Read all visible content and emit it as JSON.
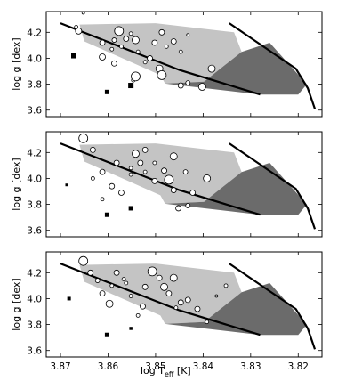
{
  "chart_data": [
    {
      "type": "scatter",
      "panel": "top",
      "ylabel": "log g [dex]",
      "xlim": [
        3.873,
        3.815
      ],
      "ylim": [
        4.36,
        3.55
      ],
      "xticks": [
        3.87,
        3.86,
        3.85,
        3.84,
        3.83,
        3.82
      ],
      "yticks": [
        3.6,
        3.8,
        4.0,
        4.2
      ],
      "ytick_labels": [
        "3.6",
        "3.8",
        "4.0",
        "4.2"
      ],
      "grid": false,
      "dark_region": [
        [
          3.848,
          3.805
        ],
        [
          3.828,
          3.72
        ],
        [
          3.82,
          3.72
        ],
        [
          3.8182,
          3.8
        ],
        [
          3.826,
          4.12
        ],
        [
          3.8319,
          4.05
        ],
        [
          3.8398,
          3.82
        ]
      ],
      "light_region": [
        [
          3.866,
          4.26
        ],
        [
          3.865,
          4.13
        ],
        [
          3.857,
          4.0
        ],
        [
          3.849,
          3.87
        ],
        [
          3.848,
          3.805
        ],
        [
          3.8398,
          3.82
        ],
        [
          3.8319,
          4.05
        ],
        [
          3.8335,
          4.2
        ],
        [
          3.85,
          4.27
        ]
      ],
      "lines": [
        [
          [
            3.87,
            4.27
          ],
          [
            3.845,
            3.91
          ],
          [
            3.828,
            3.72
          ]
        ],
        [
          [
            3.8345,
            4.27
          ],
          [
            3.8205,
            3.92
          ],
          [
            3.818,
            3.77
          ],
          [
            3.8165,
            3.61
          ]
        ]
      ],
      "filled_points": [
        {
          "x": 3.8672,
          "y": 4.02,
          "size": 6
        },
        {
          "x": 3.8602,
          "y": 3.74,
          "size": 5
        },
        {
          "x": 3.8552,
          "y": 3.79,
          "size": 6
        }
      ],
      "open_points": [
        {
          "x": 3.8662,
          "y": 4.21,
          "size": 3.5
        },
        {
          "x": 3.8612,
          "y": 4.12,
          "size": 3
        },
        {
          "x": 3.8592,
          "y": 4.07,
          "size": 2
        },
        {
          "x": 3.8612,
          "y": 4.01,
          "size": 3.5
        },
        {
          "x": 3.8587,
          "y": 3.96,
          "size": 3
        },
        {
          "x": 3.8577,
          "y": 4.21,
          "size": 5
        },
        {
          "x": 3.8562,
          "y": 4.15,
          "size": 3
        },
        {
          "x": 3.8572,
          "y": 4.09,
          "size": 2
        },
        {
          "x": 3.8552,
          "y": 4.19,
          "size": 2
        },
        {
          "x": 3.8542,
          "y": 4.14,
          "size": 4
        },
        {
          "x": 3.8537,
          "y": 4.05,
          "size": 2
        },
        {
          "x": 3.8547,
          "y": 3.83,
          "size": 2
        },
        {
          "x": 3.8492,
          "y": 3.92,
          "size": 4
        },
        {
          "x": 3.8512,
          "y": 4.0,
          "size": 3
        },
        {
          "x": 3.8502,
          "y": 4.12,
          "size": 3
        },
        {
          "x": 3.8487,
          "y": 4.2,
          "size": 3
        },
        {
          "x": 3.8477,
          "y": 4.09,
          "size": 2
        },
        {
          "x": 3.8462,
          "y": 4.13,
          "size": 3
        },
        {
          "x": 3.8447,
          "y": 4.05,
          "size": 2
        },
        {
          "x": 3.8432,
          "y": 4.18,
          "size": 1.5
        },
        {
          "x": 3.8447,
          "y": 3.79,
          "size": 3
        },
        {
          "x": 3.8432,
          "y": 3.81,
          "size": 2.5
        },
        {
          "x": 3.8402,
          "y": 3.78,
          "size": 4
        },
        {
          "x": 3.8522,
          "y": 3.97,
          "size": 2
        },
        {
          "x": 3.8667,
          "y": 4.24,
          "size": 2
        },
        {
          "x": 3.8652,
          "y": 4.35,
          "size": 1.5
        },
        {
          "x": 3.8487,
          "y": 3.87,
          "size": 5
        },
        {
          "x": 3.8382,
          "y": 3.92,
          "size": 4
        },
        {
          "x": 3.8542,
          "y": 3.86,
          "size": 5
        },
        {
          "x": 3.8587,
          "y": 4.14,
          "size": 2.5
        }
      ]
    },
    {
      "type": "scatter",
      "panel": "middle",
      "ylabel": "log g [dex]",
      "xlim": [
        3.873,
        3.815
      ],
      "ylim": [
        4.36,
        3.55
      ],
      "xticks": [
        3.87,
        3.86,
        3.85,
        3.84,
        3.83,
        3.82
      ],
      "yticks": [
        3.6,
        3.8,
        4.0,
        4.2
      ],
      "ytick_labels": [
        "3.6",
        "3.8",
        "4.0",
        "4.2"
      ],
      "grid": false,
      "dark_region": [
        [
          3.848,
          3.805
        ],
        [
          3.828,
          3.72
        ],
        [
          3.82,
          3.72
        ],
        [
          3.8182,
          3.8
        ],
        [
          3.826,
          4.12
        ],
        [
          3.8319,
          4.05
        ],
        [
          3.8398,
          3.82
        ]
      ],
      "light_region": [
        [
          3.866,
          4.26
        ],
        [
          3.865,
          4.13
        ],
        [
          3.857,
          4.0
        ],
        [
          3.849,
          3.87
        ],
        [
          3.848,
          3.805
        ],
        [
          3.8398,
          3.82
        ],
        [
          3.8319,
          4.05
        ],
        [
          3.8335,
          4.2
        ],
        [
          3.85,
          4.27
        ]
      ],
      "lines": [
        [
          [
            3.87,
            4.27
          ],
          [
            3.845,
            3.91
          ],
          [
            3.828,
            3.72
          ]
        ],
        [
          [
            3.8345,
            4.27
          ],
          [
            3.8205,
            3.92
          ],
          [
            3.818,
            3.77
          ],
          [
            3.8165,
            3.61
          ]
        ]
      ],
      "filled_points": [
        {
          "x": 3.8602,
          "y": 3.72,
          "size": 5
        },
        {
          "x": 3.8552,
          "y": 3.77,
          "size": 5
        },
        {
          "x": 3.8687,
          "y": 3.95,
          "size": 3
        }
      ],
      "open_points": [
        {
          "x": 3.8652,
          "y": 4.31,
          "size": 5
        },
        {
          "x": 3.8632,
          "y": 4.22,
          "size": 3
        },
        {
          "x": 3.8612,
          "y": 4.05,
          "size": 3
        },
        {
          "x": 3.8582,
          "y": 4.12,
          "size": 3
        },
        {
          "x": 3.8552,
          "y": 4.03,
          "size": 2
        },
        {
          "x": 3.8542,
          "y": 4.19,
          "size": 4
        },
        {
          "x": 3.8532,
          "y": 4.12,
          "size": 3
        },
        {
          "x": 3.8522,
          "y": 4.05,
          "size": 2
        },
        {
          "x": 3.8502,
          "y": 3.98,
          "size": 3
        },
        {
          "x": 3.8482,
          "y": 4.06,
          "size": 3
        },
        {
          "x": 3.8472,
          "y": 3.99,
          "size": 5
        },
        {
          "x": 3.8462,
          "y": 4.17,
          "size": 4
        },
        {
          "x": 3.8452,
          "y": 3.77,
          "size": 3
        },
        {
          "x": 3.8432,
          "y": 3.79,
          "size": 2.5
        },
        {
          "x": 3.8422,
          "y": 3.89,
          "size": 3
        },
        {
          "x": 3.8392,
          "y": 4.0,
          "size": 4
        },
        {
          "x": 3.8572,
          "y": 3.89,
          "size": 3
        },
        {
          "x": 3.8612,
          "y": 3.84,
          "size": 2
        },
        {
          "x": 3.8592,
          "y": 3.94,
          "size": 3
        },
        {
          "x": 3.8502,
          "y": 4.12,
          "size": 2
        },
        {
          "x": 3.8552,
          "y": 4.08,
          "size": 2
        },
        {
          "x": 3.8632,
          "y": 4.0,
          "size": 2
        },
        {
          "x": 3.8437,
          "y": 4.05,
          "size": 2.5
        },
        {
          "x": 3.8522,
          "y": 4.22,
          "size": 3
        },
        {
          "x": 3.8462,
          "y": 3.91,
          "size": 3
        }
      ]
    },
    {
      "type": "scatter",
      "panel": "bottom",
      "ylabel": "log g [dex]",
      "xlabel": "log Teff [K]",
      "xlim": [
        3.873,
        3.815
      ],
      "ylim": [
        4.36,
        3.55
      ],
      "xticks": [
        3.87,
        3.86,
        3.85,
        3.84,
        3.83,
        3.82
      ],
      "xtick_labels": [
        "3.87",
        "3.86",
        "3.85",
        "3.84",
        "3.83",
        "3.82"
      ],
      "yticks": [
        3.6,
        3.8,
        4.0,
        4.2
      ],
      "ytick_labels": [
        "3.6",
        "3.8",
        "4.0",
        "4.2"
      ],
      "grid": false,
      "dark_region": [
        [
          3.848,
          3.805
        ],
        [
          3.828,
          3.72
        ],
        [
          3.82,
          3.72
        ],
        [
          3.8182,
          3.8
        ],
        [
          3.826,
          4.12
        ],
        [
          3.8319,
          4.05
        ],
        [
          3.8398,
          3.82
        ]
      ],
      "light_region": [
        [
          3.866,
          4.26
        ],
        [
          3.865,
          4.13
        ],
        [
          3.857,
          4.0
        ],
        [
          3.849,
          3.87
        ],
        [
          3.848,
          3.805
        ],
        [
          3.8398,
          3.82
        ],
        [
          3.8319,
          4.05
        ],
        [
          3.8335,
          4.2
        ],
        [
          3.85,
          4.27
        ]
      ],
      "lines": [
        [
          [
            3.87,
            4.27
          ],
          [
            3.845,
            3.91
          ],
          [
            3.828,
            3.72
          ]
        ],
        [
          [
            3.8345,
            4.27
          ],
          [
            3.8205,
            3.92
          ],
          [
            3.818,
            3.77
          ],
          [
            3.8165,
            3.61
          ]
        ]
      ],
      "filled_points": [
        {
          "x": 3.8602,
          "y": 3.72,
          "size": 5
        },
        {
          "x": 3.8552,
          "y": 3.77,
          "size": 3.5
        },
        {
          "x": 3.8682,
          "y": 4.0,
          "size": 4
        }
      ],
      "open_points": [
        {
          "x": 3.8652,
          "y": 4.29,
          "size": 5
        },
        {
          "x": 3.8637,
          "y": 4.2,
          "size": 3
        },
        {
          "x": 3.8622,
          "y": 4.14,
          "size": 2.5
        },
        {
          "x": 3.8612,
          "y": 4.04,
          "size": 3
        },
        {
          "x": 3.8597,
          "y": 3.96,
          "size": 4
        },
        {
          "x": 3.8592,
          "y": 4.1,
          "size": 2
        },
        {
          "x": 3.8582,
          "y": 4.2,
          "size": 3
        },
        {
          "x": 3.8562,
          "y": 4.12,
          "size": 2
        },
        {
          "x": 3.8552,
          "y": 4.02,
          "size": 2
        },
        {
          "x": 3.8537,
          "y": 3.87,
          "size": 2
        },
        {
          "x": 3.8522,
          "y": 4.09,
          "size": 3
        },
        {
          "x": 3.8507,
          "y": 4.21,
          "size": 5
        },
        {
          "x": 3.8492,
          "y": 4.16,
          "size": 3
        },
        {
          "x": 3.8482,
          "y": 4.09,
          "size": 4
        },
        {
          "x": 3.8472,
          "y": 4.04,
          "size": 3
        },
        {
          "x": 3.8462,
          "y": 4.16,
          "size": 4
        },
        {
          "x": 3.8447,
          "y": 3.97,
          "size": 3
        },
        {
          "x": 3.8432,
          "y": 3.99,
          "size": 3
        },
        {
          "x": 3.8412,
          "y": 3.92,
          "size": 3
        },
        {
          "x": 3.8392,
          "y": 3.82,
          "size": 2
        },
        {
          "x": 3.8352,
          "y": 4.1,
          "size": 2
        },
        {
          "x": 3.8372,
          "y": 4.02,
          "size": 1.5
        },
        {
          "x": 3.8457,
          "y": 3.93,
          "size": 2
        },
        {
          "x": 3.8527,
          "y": 3.94,
          "size": 3
        },
        {
          "x": 3.8567,
          "y": 4.15,
          "size": 2
        }
      ]
    }
  ],
  "colors": {
    "dark_region": "#6b6b6b",
    "light_region": "#c4c4c4",
    "line": "#000000",
    "filled_marker": "#000000",
    "open_marker_face": "#ffffff",
    "open_marker_edge": "#000000"
  },
  "labels": {
    "ylabel": "log g [dex]",
    "xlabel_main": "log T",
    "xlabel_sub": "eff",
    "xlabel_unit": " [K]"
  }
}
